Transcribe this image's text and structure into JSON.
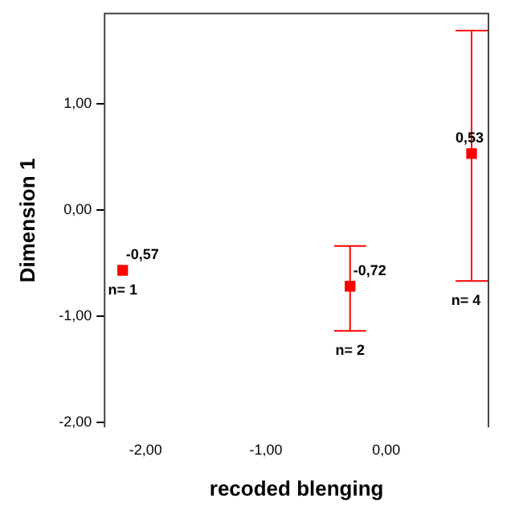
{
  "chart_data": {
    "type": "scatter",
    "xlabel": "recoded blenging",
    "ylabel": "Dimension 1",
    "x": [
      -2.19,
      -0.3,
      0.71
    ],
    "series": [
      {
        "color": "#ff0000",
        "values": [
          -0.57,
          -0.72,
          0.53
        ],
        "value_labels": [
          "-0,57",
          "-0,72",
          "0,53"
        ],
        "errors": [
          null,
          [
            -1.14,
            -0.34
          ],
          [
            -0.67,
            1.69
          ]
        ]
      }
    ],
    "marker": "square",
    "xlim": [
      -2.34,
      0.85
    ],
    "xticks": [
      {
        "value": -2,
        "label": "-2,00"
      },
      {
        "value": -1,
        "label": "-1,00"
      },
      {
        "value": 0,
        "label": "0,00"
      }
    ],
    "ylim": [
      -2.05,
      1.85
    ],
    "yticks": [
      {
        "value": -2,
        "label": "-2,00"
      },
      {
        "value": -1,
        "label": "-1,00"
      },
      {
        "value": 0,
        "label": "0,00"
      },
      {
        "value": 1,
        "label": "1,00"
      }
    ],
    "annotations": [
      {
        "text": "n= 1",
        "x": -2.19,
        "y": -0.57
      },
      {
        "text": "n= 2",
        "x": -0.3,
        "y": -1.14
      },
      {
        "text": "n= 4",
        "x": 0.71,
        "y": -0.67
      }
    ],
    "grid": false,
    "legend": false
  }
}
